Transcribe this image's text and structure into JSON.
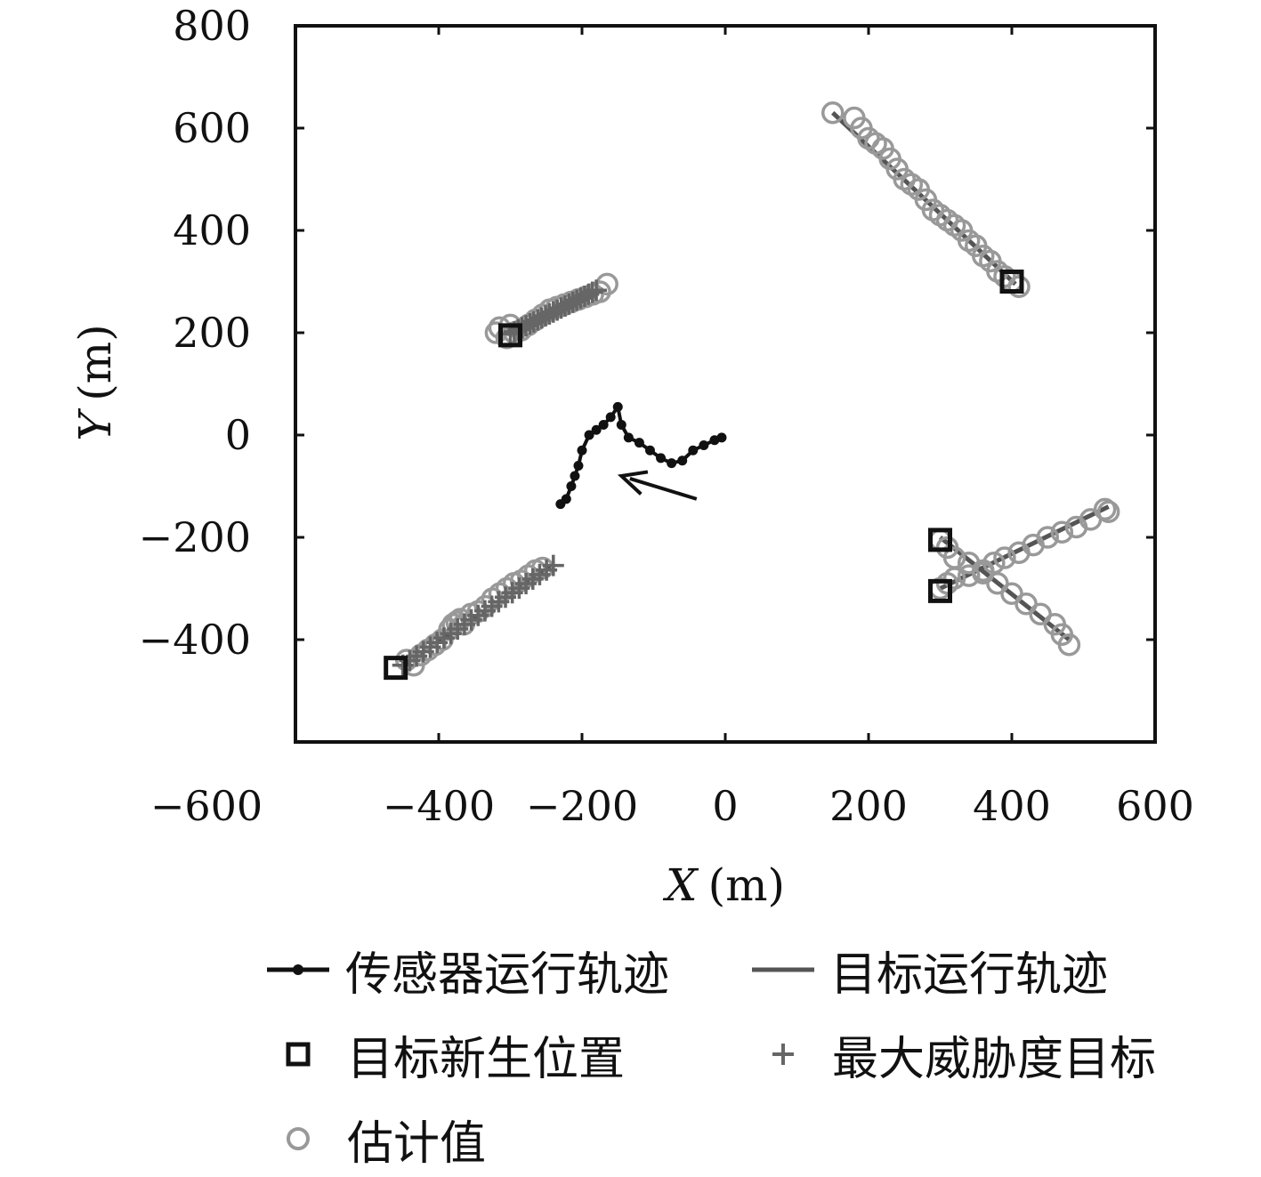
{
  "chart_data": {
    "type": "scatter",
    "title": "",
    "xlabel": "X (m)",
    "xlabel_var": "X",
    "xlabel_unit": "(m)",
    "ylabel": "Y (m)",
    "ylabel_var": "Y",
    "ylabel_unit": "(m)",
    "xlim": [
      -600,
      600
    ],
    "ylim": [
      -600,
      800
    ],
    "xticks": [
      -600,
      -400,
      -200,
      0,
      200,
      400,
      600
    ],
    "yticks": [
      -400,
      -200,
      0,
      200,
      400,
      600,
      800
    ],
    "xtick_labels": [
      "−600",
      "−400",
      "−200",
      "0",
      "200",
      "400",
      "600"
    ],
    "ytick_labels": [
      "−400",
      "−200",
      "0",
      "200",
      "400",
      "600",
      "800"
    ],
    "grid": false,
    "legend_position": "bottom",
    "colors": {
      "sensor": "#111111",
      "target": "#555555",
      "birth": "#111111",
      "threat": "#666666",
      "estimate": "#999999"
    },
    "sensor_track": {
      "name": "传感器运行轨迹",
      "x": [
        -5,
        -15,
        -30,
        -45,
        -60,
        -75,
        -90,
        -105,
        -120,
        -135,
        -145,
        -150,
        -160,
        -170,
        -180,
        -190,
        -200,
        -205,
        -210,
        -215,
        -222,
        -230
      ],
      "y": [
        -5,
        -10,
        -20,
        -30,
        -50,
        -55,
        -45,
        -30,
        -15,
        -5,
        20,
        55,
        35,
        20,
        10,
        0,
        -30,
        -60,
        -80,
        -100,
        -125,
        -135
      ]
    },
    "arrow": {
      "from": [
        -40,
        -125
      ],
      "to": [
        -145,
        -80
      ]
    },
    "target_tracks": {
      "name": "目标运行轨迹",
      "tracks": [
        {
          "x": [
            -300,
            -170
          ],
          "y": [
            195,
            285
          ]
        },
        {
          "x": [
            -455,
            -240
          ],
          "y": [
            -455,
            -255
          ]
        },
        {
          "x": [
            150,
            405
          ],
          "y": [
            630,
            295
          ]
        },
        {
          "x": [
            300,
            535
          ],
          "y": [
            -300,
            -140
          ]
        },
        {
          "x": [
            300,
            480
          ],
          "y": [
            -200,
            -400
          ]
        }
      ]
    },
    "birth_positions": {
      "name": "目标新生位置",
      "x": [
        -300,
        -460,
        400,
        300,
        300
      ],
      "y": [
        195,
        -455,
        300,
        -205,
        -305
      ]
    },
    "max_threat": {
      "name": "最大威胁度目标",
      "segments": [
        {
          "x": [
            -300,
            -180
          ],
          "y": [
            198,
            283
          ]
        },
        {
          "x": [
            -450,
            -240
          ],
          "y": [
            -450,
            -255
          ]
        }
      ]
    },
    "estimates": {
      "name": "估计值",
      "x": [
        -320,
        -315,
        -305,
        -300,
        -295,
        -285,
        -275,
        -265,
        -255,
        -245,
        -235,
        -225,
        -215,
        -205,
        -195,
        -185,
        -175,
        -165,
        -445,
        -435,
        -425,
        -415,
        -405,
        -395,
        -385,
        -380,
        -375,
        -370,
        -365,
        -355,
        -345,
        -335,
        -325,
        -315,
        -305,
        -295,
        -285,
        -275,
        -265,
        -255,
        150,
        180,
        190,
        200,
        210,
        220,
        230,
        240,
        250,
        260,
        270,
        280,
        290,
        300,
        310,
        320,
        330,
        340,
        350,
        360,
        370,
        380,
        390,
        400,
        410,
        300,
        310,
        320,
        340,
        360,
        375,
        390,
        410,
        430,
        450,
        470,
        490,
        510,
        530,
        535,
        300,
        310,
        320,
        340,
        360,
        380,
        400,
        420,
        440,
        460,
        470,
        480
      ],
      "y": [
        200,
        210,
        190,
        215,
        200,
        205,
        215,
        225,
        235,
        245,
        250,
        255,
        260,
        265,
        270,
        275,
        280,
        295,
        -440,
        -450,
        -430,
        -420,
        -410,
        -400,
        -380,
        -370,
        -365,
        -360,
        -370,
        -350,
        -345,
        -335,
        -320,
        -310,
        -300,
        -290,
        -285,
        -275,
        -265,
        -260,
        630,
        620,
        600,
        580,
        570,
        560,
        540,
        520,
        500,
        490,
        480,
        460,
        440,
        430,
        420,
        410,
        400,
        380,
        370,
        350,
        340,
        320,
        310,
        300,
        290,
        -300,
        -290,
        -280,
        -275,
        -265,
        -250,
        -240,
        -230,
        -215,
        -200,
        -190,
        -180,
        -165,
        -145,
        -150,
        -205,
        -220,
        -240,
        -250,
        -270,
        -290,
        -310,
        -330,
        -350,
        -370,
        -390,
        -410
      ]
    }
  }
}
